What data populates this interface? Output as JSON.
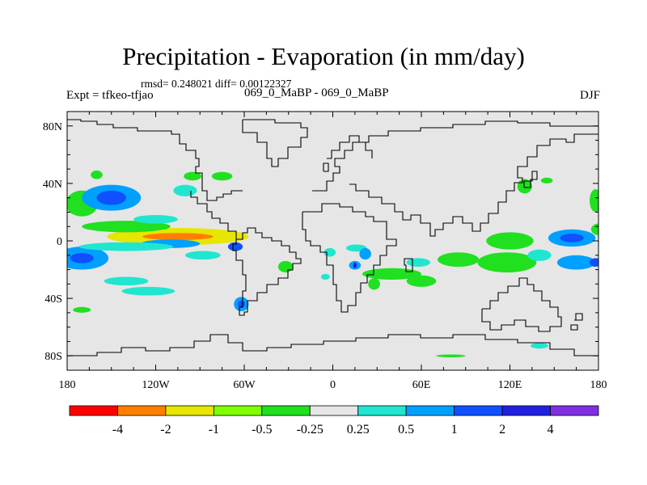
{
  "header": {
    "title": "Precipitation - Evaporation (in mm/day)",
    "stats": "rmsd= 0.248021 diff= 0.00122327",
    "experiment": "Expt = tfkeo-tfjao",
    "case": "069_0_MaBP - 069_0_MaBP",
    "season": "DJF"
  },
  "chart_data": {
    "type": "heatmap",
    "title": "Precipitation - Evaporation (in mm/day)",
    "xlabel": "",
    "ylabel": "",
    "xlim": [
      -180,
      180
    ],
    "ylim": [
      -90,
      90
    ],
    "xticks": [
      -180,
      -120,
      -60,
      0,
      60,
      120,
      180
    ],
    "xtick_labels": [
      "180",
      "120W",
      "60W",
      "0",
      "60E",
      "120E",
      "180"
    ],
    "yticks": [
      80,
      40,
      0,
      -40,
      -80
    ],
    "ytick_labels": [
      "80N",
      "40N",
      "0",
      "40S",
      "80S"
    ],
    "colorbar": {
      "levels": [
        "-4",
        "-2",
        "-1",
        "-0.5",
        "-0.25",
        "0.25",
        "0.5",
        "1",
        "2",
        "4"
      ],
      "colors": [
        "#ff0000",
        "#ff8000",
        "#e6e600",
        "#80ff00",
        "#20e020",
        "#e6e6e6",
        "#20e6d0",
        "#00a0ff",
        "#1050ff",
        "#2020e0",
        "#8030e0"
      ]
    },
    "background_color": "#e6e6e6",
    "anomalies": [
      {
        "lon": -105,
        "lat": 3,
        "rx": 48,
        "ry": 6,
        "value": -1.5
      },
      {
        "lon": -105,
        "lat": 3,
        "rx": 24,
        "ry": 2.5,
        "value": -3
      },
      {
        "lon": -140,
        "lat": 10,
        "rx": 30,
        "ry": 4,
        "value": -0.5
      },
      {
        "lon": -120,
        "lat": 15,
        "rx": 15,
        "ry": 3,
        "value": 0.4
      },
      {
        "lon": -170,
        "lat": 26,
        "rx": 11,
        "ry": 9,
        "value": -0.4
      },
      {
        "lon": -150,
        "lat": 30,
        "rx": 20,
        "ry": 9,
        "value": 0.6
      },
      {
        "lon": -150,
        "lat": 30,
        "rx": 10,
        "ry": 5,
        "value": 1.5
      },
      {
        "lon": -160,
        "lat": 46,
        "rx": 4,
        "ry": 3,
        "value": -0.4
      },
      {
        "lon": -170,
        "lat": -12,
        "rx": 18,
        "ry": 8,
        "value": 0.6
      },
      {
        "lon": -170,
        "lat": -12,
        "rx": 8,
        "ry": 3.5,
        "value": 1.5
      },
      {
        "lon": -140,
        "lat": -28,
        "rx": 15,
        "ry": 3,
        "value": 0.4
      },
      {
        "lon": -110,
        "lat": -2,
        "rx": 20,
        "ry": 3,
        "value": 0.6
      },
      {
        "lon": -140,
        "lat": -4,
        "rx": 32,
        "ry": 3,
        "value": 0.4
      },
      {
        "lon": -88,
        "lat": -10,
        "rx": 12,
        "ry": 3,
        "value": 0.4
      },
      {
        "lon": -66,
        "lat": -4,
        "rx": 5,
        "ry": 3,
        "value": 1.5
      },
      {
        "lon": -125,
        "lat": -35,
        "rx": 18,
        "ry": 3,
        "value": 0.4
      },
      {
        "lon": -170,
        "lat": -48,
        "rx": 6,
        "ry": 2,
        "value": -0.4
      },
      {
        "lon": -62,
        "lat": -44,
        "rx": 5,
        "ry": 5,
        "value": 0.6
      },
      {
        "lon": -62,
        "lat": -44,
        "rx": 2.5,
        "ry": 2.5,
        "value": 1.5
      },
      {
        "lon": -75,
        "lat": 45,
        "rx": 7,
        "ry": 3,
        "value": -0.4
      },
      {
        "lon": -95,
        "lat": 45,
        "rx": 6,
        "ry": 3,
        "value": -0.4
      },
      {
        "lon": -100,
        "lat": 35,
        "rx": 8,
        "ry": 4,
        "value": 0.4
      },
      {
        "lon": -32,
        "lat": -18,
        "rx": 5,
        "ry": 4,
        "value": -0.4
      },
      {
        "lon": -2,
        "lat": -8,
        "rx": 4,
        "ry": 3,
        "value": 0.4
      },
      {
        "lon": 16,
        "lat": -5,
        "rx": 7,
        "ry": 2.5,
        "value": 0.4
      },
      {
        "lon": 15,
        "lat": -17,
        "rx": 4,
        "ry": 3,
        "value": 0.6
      },
      {
        "lon": 15,
        "lat": -17,
        "rx": 1.2,
        "ry": 2,
        "value": 3
      },
      {
        "lon": 22,
        "lat": -9,
        "rx": 4,
        "ry": 4,
        "value": 0.6
      },
      {
        "lon": 40,
        "lat": -23,
        "rx": 20,
        "ry": 4,
        "value": -0.4
      },
      {
        "lon": 60,
        "lat": -28,
        "rx": 10,
        "ry": 4,
        "value": -0.4
      },
      {
        "lon": 28,
        "lat": -30,
        "rx": 4,
        "ry": 4,
        "value": -0.4
      },
      {
        "lon": 58,
        "lat": -15,
        "rx": 8,
        "ry": 3,
        "value": 0.4
      },
      {
        "lon": 85,
        "lat": -13,
        "rx": 14,
        "ry": 5,
        "value": -0.5
      },
      {
        "lon": 120,
        "lat": 0,
        "rx": 16,
        "ry": 6,
        "value": -0.5
      },
      {
        "lon": 118,
        "lat": -15,
        "rx": 20,
        "ry": 7,
        "value": -0.5
      },
      {
        "lon": 130,
        "lat": 38,
        "rx": 5,
        "ry": 5,
        "value": -0.4
      },
      {
        "lon": 145,
        "lat": 42,
        "rx": 4,
        "ry": 2,
        "value": -0.4
      },
      {
        "lon": 162,
        "lat": 2,
        "rx": 16,
        "ry": 6,
        "value": 0.6
      },
      {
        "lon": 162,
        "lat": 2,
        "rx": 8,
        "ry": 3,
        "value": 1.5
      },
      {
        "lon": 165,
        "lat": -15,
        "rx": 13,
        "ry": 5,
        "value": 0.6
      },
      {
        "lon": 178,
        "lat": -15,
        "rx": 4,
        "ry": 3,
        "value": 1.5
      },
      {
        "lon": 178,
        "lat": 28,
        "rx": 4,
        "ry": 8,
        "value": -0.4
      },
      {
        "lon": 180,
        "lat": 8,
        "rx": 5,
        "ry": 4,
        "value": -0.4
      },
      {
        "lon": 140,
        "lat": -10,
        "rx": 8,
        "ry": 4,
        "value": 0.4
      },
      {
        "lon": 80,
        "lat": -80,
        "rx": 10,
        "ry": 1,
        "value": -0.4
      },
      {
        "lon": 140,
        "lat": -73,
        "rx": 6,
        "ry": 2,
        "value": 0.4
      },
      {
        "lon": -5,
        "lat": -25,
        "rx": 3,
        "ry": 2,
        "value": 0.4
      }
    ]
  }
}
